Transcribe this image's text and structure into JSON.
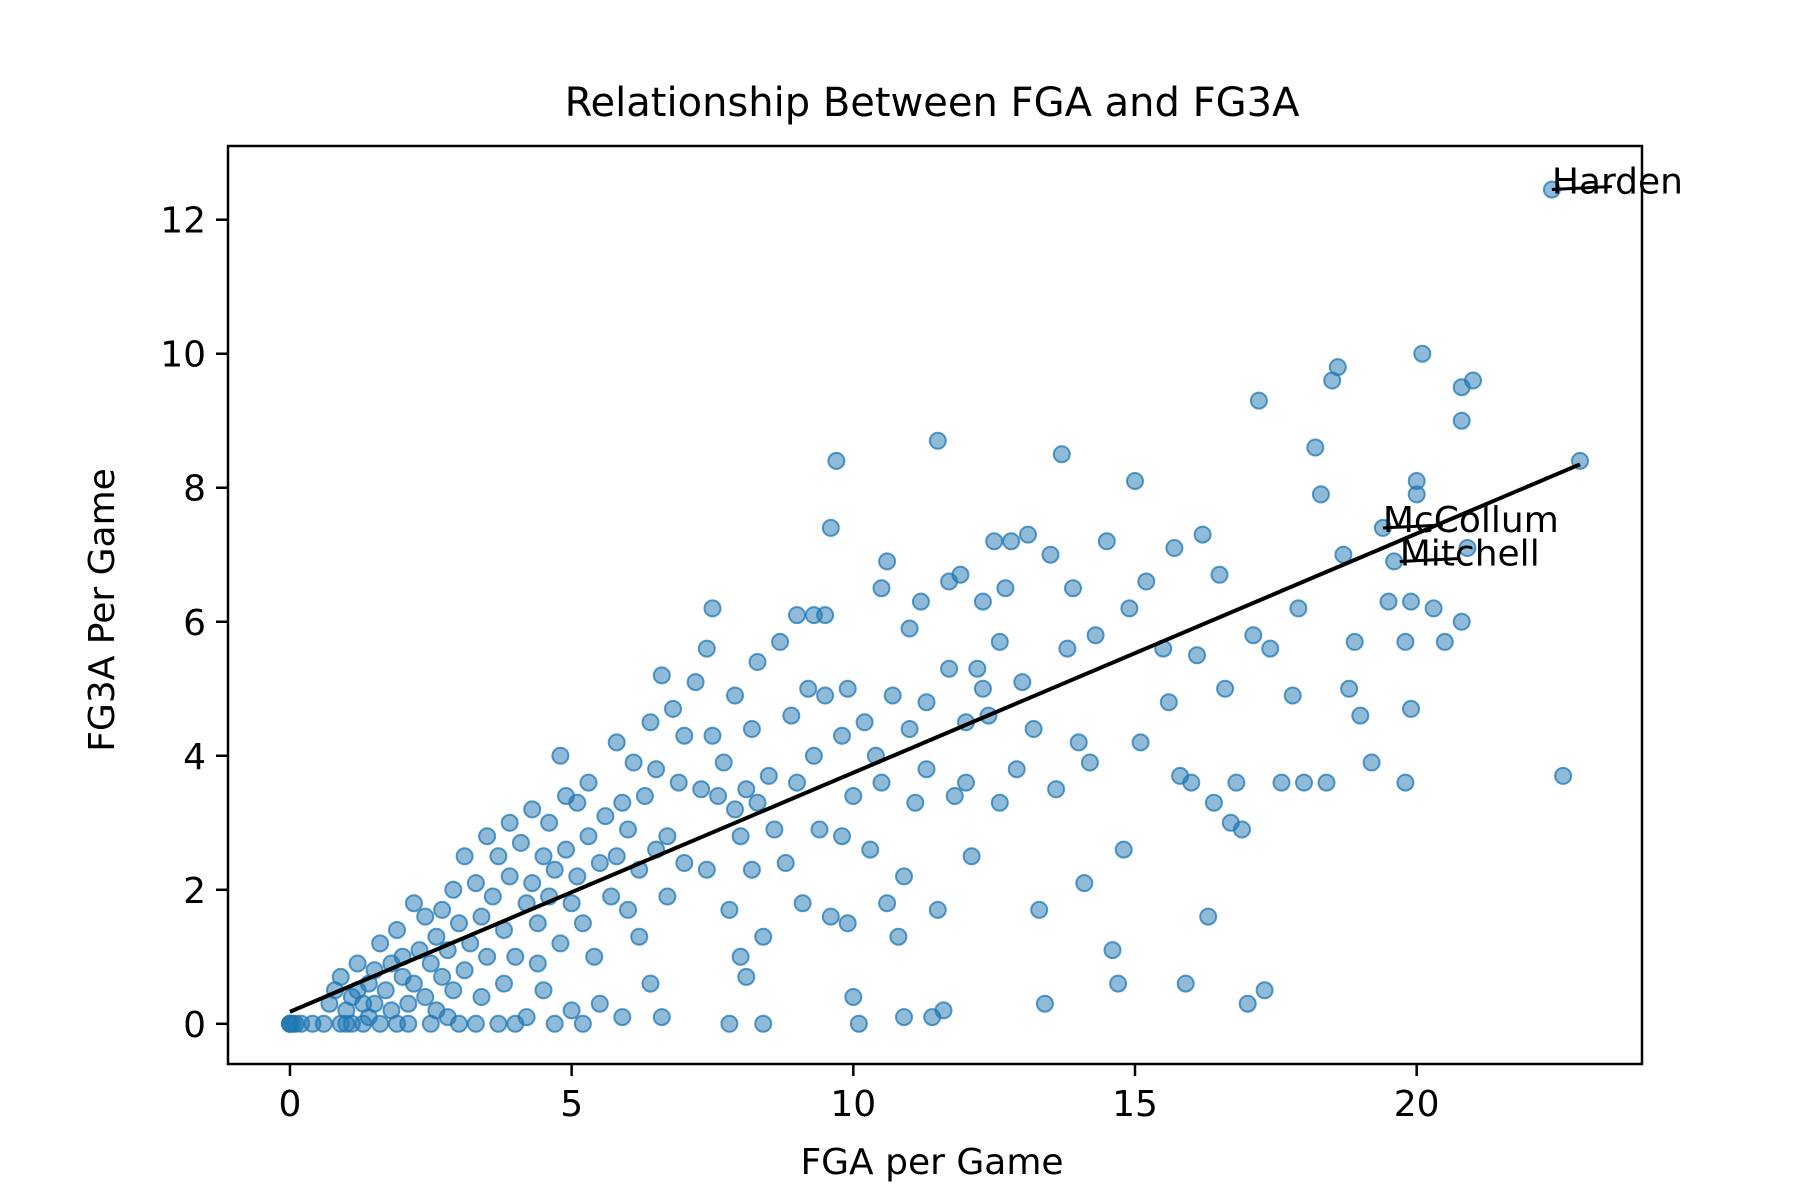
{
  "chart_data": {
    "type": "scatter",
    "title": "Relationship Between FGA and FG3A",
    "xlabel": "FGA per Game",
    "ylabel": "FG3A Per Game",
    "xlim": [
      -1.1,
      24.0
    ],
    "ylim": [
      -0.6,
      13.1
    ],
    "xticks": [
      "0",
      "5",
      "10",
      "15",
      "20"
    ],
    "yticks": [
      "0",
      "2",
      "4",
      "6",
      "8",
      "10",
      "12"
    ],
    "point_color": "#1f77b4",
    "point_alpha": 0.5,
    "trend_color": "#000000",
    "trend_line": {
      "x": [
        0,
        22.9
      ],
      "y": [
        0.18,
        8.35
      ]
    },
    "annotations": [
      {
        "label": "Harden",
        "x": 22.4,
        "y": 12.45
      },
      {
        "label": "McCollum",
        "x": 19.4,
        "y": 7.4
      },
      {
        "label": "Mitchell",
        "x": 19.7,
        "y": 6.9
      }
    ],
    "points": [
      [
        0.0,
        0.0
      ],
      [
        0.0,
        0.0
      ],
      [
        0.0,
        0.0
      ],
      [
        0.05,
        0.0
      ],
      [
        0.1,
        0.0
      ],
      [
        0.2,
        0.0
      ],
      [
        0.4,
        0.0
      ],
      [
        0.6,
        0.0
      ],
      [
        0.7,
        0.3
      ],
      [
        0.8,
        0.5
      ],
      [
        0.9,
        0.0
      ],
      [
        0.9,
        0.7
      ],
      [
        1.0,
        0.2
      ],
      [
        1.0,
        0.0
      ],
      [
        1.1,
        0.4
      ],
      [
        1.1,
        0.0
      ],
      [
        1.2,
        0.5
      ],
      [
        1.2,
        0.9
      ],
      [
        1.3,
        0.3
      ],
      [
        1.3,
        0.0
      ],
      [
        1.4,
        0.6
      ],
      [
        1.4,
        0.1
      ],
      [
        1.5,
        0.8
      ],
      [
        1.5,
        0.3
      ],
      [
        1.6,
        1.2
      ],
      [
        1.6,
        0.0
      ],
      [
        1.7,
        0.5
      ],
      [
        1.8,
        0.9
      ],
      [
        1.8,
        0.2
      ],
      [
        1.9,
        1.4
      ],
      [
        1.9,
        0.0
      ],
      [
        2.0,
        0.7
      ],
      [
        2.0,
        1.0
      ],
      [
        2.1,
        0.3
      ],
      [
        2.1,
        0.0
      ],
      [
        2.2,
        1.8
      ],
      [
        2.2,
        0.6
      ],
      [
        2.3,
        1.1
      ],
      [
        2.4,
        0.4
      ],
      [
        2.4,
        1.6
      ],
      [
        2.5,
        0.0
      ],
      [
        2.5,
        0.9
      ],
      [
        2.6,
        1.3
      ],
      [
        2.6,
        0.2
      ],
      [
        2.7,
        0.7
      ],
      [
        2.7,
        1.7
      ],
      [
        2.8,
        1.1
      ],
      [
        2.8,
        0.1
      ],
      [
        2.9,
        2.0
      ],
      [
        2.9,
        0.5
      ],
      [
        3.0,
        1.5
      ],
      [
        3.0,
        0.0
      ],
      [
        3.1,
        2.5
      ],
      [
        3.1,
        0.8
      ],
      [
        3.2,
        1.2
      ],
      [
        3.3,
        0.0
      ],
      [
        3.3,
        2.1
      ],
      [
        3.4,
        1.6
      ],
      [
        3.4,
        0.4
      ],
      [
        3.5,
        2.8
      ],
      [
        3.5,
        1.0
      ],
      [
        3.6,
        1.9
      ],
      [
        3.7,
        0.0
      ],
      [
        3.7,
        2.5
      ],
      [
        3.8,
        1.4
      ],
      [
        3.8,
        0.6
      ],
      [
        3.9,
        3.0
      ],
      [
        3.9,
        2.2
      ],
      [
        4.0,
        1.0
      ],
      [
        4.0,
        0.0
      ],
      [
        4.1,
        2.7
      ],
      [
        4.2,
        1.8
      ],
      [
        4.2,
        0.1
      ],
      [
        4.3,
        3.2
      ],
      [
        4.3,
        2.1
      ],
      [
        4.4,
        1.5
      ],
      [
        4.4,
        0.9
      ],
      [
        4.5,
        2.5
      ],
      [
        4.5,
        0.5
      ],
      [
        4.6,
        1.9
      ],
      [
        4.6,
        3.0
      ],
      [
        4.7,
        2.3
      ],
      [
        4.7,
        0.0
      ],
      [
        4.8,
        4.0
      ],
      [
        4.8,
        1.2
      ],
      [
        4.9,
        2.6
      ],
      [
        4.9,
        3.4
      ],
      [
        5.0,
        1.8
      ],
      [
        5.0,
        0.2
      ],
      [
        5.1,
        2.2
      ],
      [
        5.1,
        3.3
      ],
      [
        5.2,
        1.5
      ],
      [
        5.2,
        0.0
      ],
      [
        5.3,
        2.8
      ],
      [
        5.3,
        3.6
      ],
      [
        5.4,
        1.0
      ],
      [
        5.5,
        2.4
      ],
      [
        5.5,
        0.3
      ],
      [
        5.6,
        3.1
      ],
      [
        5.7,
        1.9
      ],
      [
        5.8,
        2.5
      ],
      [
        5.8,
        4.2
      ],
      [
        5.9,
        3.3
      ],
      [
        5.9,
        0.1
      ],
      [
        6.0,
        1.7
      ],
      [
        6.0,
        2.9
      ],
      [
        6.1,
        3.9
      ],
      [
        6.2,
        2.3
      ],
      [
        6.2,
        1.3
      ],
      [
        6.3,
        3.4
      ],
      [
        6.4,
        4.5
      ],
      [
        6.4,
        0.6
      ],
      [
        6.5,
        2.6
      ],
      [
        6.5,
        3.8
      ],
      [
        6.6,
        5.2
      ],
      [
        6.6,
        0.1
      ],
      [
        6.7,
        1.9
      ],
      [
        6.7,
        2.8
      ],
      [
        6.8,
        4.7
      ],
      [
        6.9,
        3.6
      ],
      [
        7.0,
        4.3
      ],
      [
        7.0,
        2.4
      ],
      [
        7.2,
        5.1
      ],
      [
        7.3,
        3.5
      ],
      [
        7.4,
        2.3
      ],
      [
        7.4,
        5.6
      ],
      [
        7.5,
        6.2
      ],
      [
        7.5,
        4.3
      ],
      [
        7.6,
        3.4
      ],
      [
        7.7,
        3.9
      ],
      [
        7.8,
        1.7
      ],
      [
        7.8,
        0.0
      ],
      [
        7.9,
        4.9
      ],
      [
        7.9,
        3.2
      ],
      [
        8.0,
        2.8
      ],
      [
        8.0,
        1.0
      ],
      [
        8.1,
        0.7
      ],
      [
        8.1,
        3.5
      ],
      [
        8.2,
        4.4
      ],
      [
        8.2,
        2.3
      ],
      [
        8.3,
        5.4
      ],
      [
        8.3,
        3.3
      ],
      [
        8.4,
        1.3
      ],
      [
        8.4,
        0.0
      ],
      [
        8.5,
        3.7
      ],
      [
        8.6,
        2.9
      ],
      [
        8.7,
        5.7
      ],
      [
        8.8,
        2.4
      ],
      [
        8.9,
        4.6
      ],
      [
        9.0,
        6.1
      ],
      [
        9.0,
        3.6
      ],
      [
        9.1,
        1.8
      ],
      [
        9.2,
        5.0
      ],
      [
        9.3,
        4.0
      ],
      [
        9.3,
        6.1
      ],
      [
        9.4,
        2.9
      ],
      [
        9.5,
        4.9
      ],
      [
        9.5,
        6.1
      ],
      [
        9.6,
        1.6
      ],
      [
        9.6,
        7.4
      ],
      [
        9.7,
        8.4
      ],
      [
        9.8,
        4.3
      ],
      [
        9.8,
        2.8
      ],
      [
        9.9,
        5.0
      ],
      [
        9.9,
        1.5
      ],
      [
        10.0,
        0.4
      ],
      [
        10.0,
        3.4
      ],
      [
        10.1,
        0.0
      ],
      [
        10.2,
        4.5
      ],
      [
        10.3,
        2.6
      ],
      [
        10.4,
        4.0
      ],
      [
        10.5,
        6.5
      ],
      [
        10.5,
        3.6
      ],
      [
        10.6,
        6.9
      ],
      [
        10.6,
        1.8
      ],
      [
        10.7,
        4.9
      ],
      [
        10.8,
        1.3
      ],
      [
        10.9,
        2.2
      ],
      [
        10.9,
        0.1
      ],
      [
        11.0,
        4.4
      ],
      [
        11.0,
        5.9
      ],
      [
        11.1,
        3.3
      ],
      [
        11.2,
        6.3
      ],
      [
        11.3,
        4.8
      ],
      [
        11.3,
        3.8
      ],
      [
        11.4,
        0.1
      ],
      [
        11.5,
        8.7
      ],
      [
        11.5,
        1.7
      ],
      [
        11.6,
        0.2
      ],
      [
        11.7,
        6.6
      ],
      [
        11.7,
        5.3
      ],
      [
        11.8,
        3.4
      ],
      [
        11.9,
        6.7
      ],
      [
        12.0,
        4.5
      ],
      [
        12.0,
        3.6
      ],
      [
        12.1,
        2.5
      ],
      [
        12.2,
        5.3
      ],
      [
        12.3,
        6.3
      ],
      [
        12.3,
        5.0
      ],
      [
        12.4,
        4.6
      ],
      [
        12.5,
        7.2
      ],
      [
        12.6,
        5.7
      ],
      [
        12.6,
        3.3
      ],
      [
        12.7,
        6.5
      ],
      [
        12.8,
        7.2
      ],
      [
        12.9,
        3.8
      ],
      [
        13.0,
        5.1
      ],
      [
        13.1,
        7.3
      ],
      [
        13.2,
        4.4
      ],
      [
        13.3,
        1.7
      ],
      [
        13.4,
        0.3
      ],
      [
        13.5,
        7.0
      ],
      [
        13.6,
        3.5
      ],
      [
        13.7,
        8.5
      ],
      [
        13.8,
        5.6
      ],
      [
        13.9,
        6.5
      ],
      [
        14.0,
        4.2
      ],
      [
        14.1,
        2.1
      ],
      [
        14.2,
        3.9
      ],
      [
        14.3,
        5.8
      ],
      [
        14.5,
        7.2
      ],
      [
        14.6,
        1.1
      ],
      [
        14.7,
        0.6
      ],
      [
        14.8,
        2.6
      ],
      [
        14.9,
        6.2
      ],
      [
        15.0,
        8.1
      ],
      [
        15.1,
        4.2
      ],
      [
        15.2,
        6.6
      ],
      [
        15.5,
        5.6
      ],
      [
        15.6,
        4.8
      ],
      [
        15.7,
        7.1
      ],
      [
        15.8,
        3.7
      ],
      [
        15.9,
        0.6
      ],
      [
        16.0,
        3.6
      ],
      [
        16.1,
        5.5
      ],
      [
        16.2,
        7.3
      ],
      [
        16.3,
        1.6
      ],
      [
        16.4,
        3.3
      ],
      [
        16.5,
        6.7
      ],
      [
        16.6,
        5.0
      ],
      [
        16.7,
        3.0
      ],
      [
        16.8,
        3.6
      ],
      [
        16.9,
        2.9
      ],
      [
        17.0,
        0.3
      ],
      [
        17.1,
        5.8
      ],
      [
        17.2,
        9.3
      ],
      [
        17.3,
        0.5
      ],
      [
        17.4,
        5.6
      ],
      [
        17.6,
        3.6
      ],
      [
        17.8,
        4.9
      ],
      [
        17.9,
        6.2
      ],
      [
        18.0,
        3.6
      ],
      [
        18.2,
        8.6
      ],
      [
        18.3,
        7.9
      ],
      [
        18.4,
        3.6
      ],
      [
        18.5,
        9.6
      ],
      [
        18.6,
        9.8
      ],
      [
        18.7,
        7.0
      ],
      [
        18.8,
        5.0
      ],
      [
        18.9,
        5.7
      ],
      [
        19.0,
        4.6
      ],
      [
        19.2,
        3.9
      ],
      [
        19.8,
        3.6
      ],
      [
        19.9,
        6.3
      ],
      [
        20.0,
        7.9
      ],
      [
        20.3,
        6.2
      ],
      [
        20.5,
        5.7
      ],
      [
        20.8,
        6.0
      ],
      [
        20.9,
        7.1
      ],
      [
        21.0,
        9.6
      ],
      [
        19.4,
        7.4
      ],
      [
        19.5,
        6.3
      ],
      [
        19.6,
        6.9
      ],
      [
        19.8,
        5.7
      ],
      [
        19.9,
        4.7
      ],
      [
        20.0,
        8.1
      ],
      [
        20.1,
        10.0
      ],
      [
        20.8,
        9.5
      ],
      [
        20.8,
        9.0
      ],
      [
        22.4,
        12.45
      ],
      [
        22.6,
        3.7
      ],
      [
        22.9,
        8.4
      ]
    ]
  }
}
